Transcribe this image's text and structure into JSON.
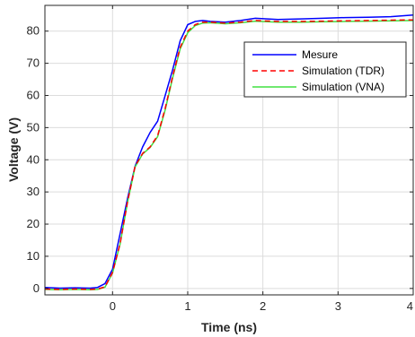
{
  "chart_data": {
    "type": "line",
    "title": "",
    "xlabel": "Time (ns)",
    "ylabel": "Voltage (V)",
    "xlim": [
      -0.9,
      4.0
    ],
    "ylim": [
      -2,
      88
    ],
    "xticks": [
      0,
      1,
      2,
      3,
      4
    ],
    "yticks": [
      0,
      10,
      20,
      30,
      40,
      50,
      60,
      70,
      80
    ],
    "grid": true,
    "legend_position": "top-right",
    "series": [
      {
        "name": "Mesure",
        "color": "#0000ff",
        "dash": "solid",
        "x": [
          -0.9,
          -0.7,
          -0.5,
          -0.3,
          -0.2,
          -0.1,
          0.0,
          0.1,
          0.2,
          0.3,
          0.4,
          0.5,
          0.6,
          0.7,
          0.8,
          0.9,
          1.0,
          1.1,
          1.2,
          1.3,
          1.5,
          1.7,
          1.9,
          2.2,
          2.5,
          2.8,
          3.1,
          3.4,
          3.7,
          4.0
        ],
        "y": [
          0.3,
          0.1,
          0.2,
          0.1,
          0.3,
          1.5,
          6,
          17,
          28,
          38,
          44,
          48.5,
          52,
          60,
          68,
          77,
          82,
          83,
          83.3,
          83,
          82.8,
          83.3,
          84,
          83.6,
          83.8,
          84,
          84.2,
          84.3,
          84.5,
          85
        ]
      },
      {
        "name": "Simulation (TDR)",
        "color": "#ff0000",
        "dash": "dashed",
        "x": [
          -0.9,
          -0.7,
          -0.5,
          -0.3,
          -0.2,
          -0.1,
          0.0,
          0.1,
          0.2,
          0.3,
          0.4,
          0.5,
          0.6,
          0.7,
          0.8,
          0.9,
          1.0,
          1.1,
          1.2,
          1.3,
          1.5,
          1.7,
          1.9,
          2.2,
          2.5,
          2.8,
          3.1,
          3.4,
          3.7,
          4.0
        ],
        "y": [
          -0.2,
          -0.3,
          -0.2,
          -0.3,
          -0.2,
          0.5,
          5,
          14,
          27,
          38,
          42,
          44,
          47.5,
          56,
          66,
          75,
          80,
          82,
          82.8,
          82.8,
          82.5,
          82.8,
          83.3,
          83,
          83,
          83.1,
          83.2,
          83.3,
          83.4,
          83.5
        ]
      },
      {
        "name": "Simulation (VNA)",
        "color": "#40e040",
        "dash": "solid",
        "x": [
          -0.9,
          -0.7,
          -0.5,
          -0.3,
          -0.2,
          -0.1,
          0.0,
          0.1,
          0.2,
          0.3,
          0.4,
          0.5,
          0.6,
          0.7,
          0.8,
          0.9,
          1.0,
          1.1,
          1.2,
          1.3,
          1.5,
          1.7,
          1.9,
          2.2,
          2.5,
          2.8,
          3.1,
          3.4,
          3.7,
          4.0
        ],
        "y": [
          -0.3,
          -0.4,
          -0.3,
          -0.4,
          -0.3,
          0.4,
          4.8,
          13.8,
          26.8,
          37.8,
          41.8,
          43.8,
          47.2,
          55.5,
          65.5,
          74.5,
          79.5,
          81.7,
          82.5,
          82.6,
          82.3,
          82.6,
          83.1,
          82.8,
          82.8,
          82.9,
          83,
          83.1,
          83.2,
          83.3
        ]
      }
    ]
  }
}
